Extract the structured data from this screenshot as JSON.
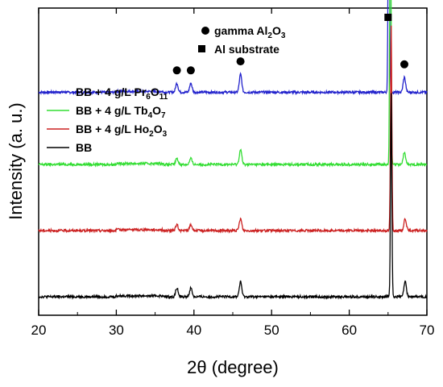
{
  "chart_data": {
    "type": "line",
    "xlabel": "2θ (degree)",
    "ylabel": "Intensity (a. u.)",
    "xlim": [
      20,
      70
    ],
    "x_ticks": [
      20,
      30,
      40,
      50,
      60,
      70
    ],
    "y_tick_labels": false,
    "grid": false,
    "legend_position": "left",
    "series": [
      {
        "name": "BB + 4 g/L Pr6O11",
        "legend_parts": [
          "BB + 4 g/L Pr",
          "6",
          "O",
          "11"
        ],
        "color": "#2222cc",
        "baseline": 0.72,
        "peaks": [
          [
            37.8,
            0.03
          ],
          [
            39.6,
            0.03
          ],
          [
            46.0,
            0.06
          ],
          [
            65.1,
            0.88
          ],
          [
            67.1,
            0.05
          ]
        ]
      },
      {
        "name": "BB + 4 g/L Tb4O7",
        "legend_parts": [
          "BB + 4 g/L Tb",
          "4",
          "O",
          "7"
        ],
        "color": "#33dd33",
        "baseline": 0.48,
        "peaks": [
          [
            37.8,
            0.02
          ],
          [
            39.6,
            0.02
          ],
          [
            46.0,
            0.05
          ],
          [
            65.3,
            0.92
          ],
          [
            67.1,
            0.04
          ]
        ]
      },
      {
        "name": "BB + 4 g/L Ho2O3",
        "legend_parts": [
          "BB + 4 g/L Ho",
          "2",
          "O",
          "3"
        ],
        "color": "#cc2222",
        "baseline": 0.26,
        "peaks": [
          [
            37.8,
            0.02
          ],
          [
            39.6,
            0.02
          ],
          [
            46.0,
            0.04
          ],
          [
            65.4,
            0.68
          ],
          [
            67.2,
            0.04
          ]
        ]
      },
      {
        "name": "BB",
        "legend_parts": [
          "BB",
          "",
          "",
          ""
        ],
        "color": "#000000",
        "baseline": 0.04,
        "peaks": [
          [
            37.8,
            0.03
          ],
          [
            39.6,
            0.03
          ],
          [
            46.0,
            0.05
          ],
          [
            65.4,
            0.68
          ],
          [
            67.2,
            0.05
          ]
        ]
      }
    ],
    "annotations": {
      "circle_markers_x": [
        37.8,
        39.6,
        46.0,
        67.1
      ],
      "square_markers_x": [
        65.0
      ]
    },
    "marker_key": [
      {
        "symbol": "circle",
        "parts": [
          "gamma Al",
          "2",
          "O",
          "3"
        ]
      },
      {
        "symbol": "square",
        "parts": [
          "Al substrate",
          "",
          "",
          ""
        ]
      }
    ]
  }
}
